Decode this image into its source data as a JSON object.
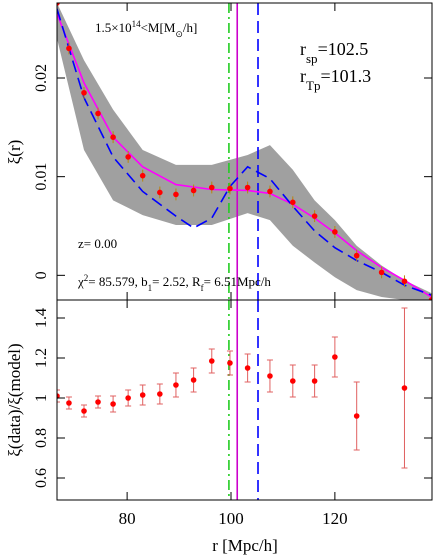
{
  "chart_data": {
    "type": "line",
    "xlabel": "r [Mpc/h]",
    "ylabel": "ξ(r)",
    "ylabel2": "ξ(data)/ξ(model)",
    "xlim": [
      66.5,
      138.7
    ],
    "xticks": [
      80,
      100,
      120
    ],
    "ylim": [
      -0.0025,
      0.0276
    ],
    "yticks": [
      0,
      0.01,
      0.02
    ],
    "ylim2": [
      0.49,
      1.49
    ],
    "yticks2": [
      0.6,
      0.8,
      1,
      1.2,
      1.4
    ],
    "band": {
      "color": "#a0a0a0",
      "x": [
        66.5,
        71.7,
        77.3,
        83.0,
        89.4,
        96.3,
        103.2,
        107.5,
        111.9,
        116.1,
        120.0,
        124.2,
        129.0,
        133.4,
        138.6
      ],
      "lower": [
        0.024,
        0.0127,
        0.0076,
        0.0061,
        0.0051,
        0.0051,
        0.0063,
        0.0056,
        0.003,
        0.0013,
        -0.0002,
        -0.0015,
        -0.0022,
        -0.0025,
        -0.0025
      ],
      "upper": [
        0.0276,
        0.0218,
        0.0168,
        0.0127,
        0.0112,
        0.0112,
        0.0122,
        0.0132,
        0.0107,
        0.0076,
        0.0056,
        0.003,
        0.001,
        -0.0005,
        -0.0018
      ]
    },
    "series": [
      {
        "color": "#ff00ff",
        "dash": "solid",
        "x": [
          66.5,
          71.7,
          77.3,
          83.0,
          89.4,
          96.3,
          103.2,
          107.5,
          111.9,
          116.1,
          120.0,
          124.2,
          129.0,
          133.4,
          138.6
        ],
        "values": [
          0.0265,
          0.0195,
          0.014,
          0.011,
          0.0092,
          0.0087,
          0.0086,
          0.0083,
          0.0072,
          0.0058,
          0.0043,
          0.0025,
          0.0008,
          -0.0005,
          -0.0022
        ]
      },
      {
        "color": "#0000ff",
        "dash": "dashed",
        "x": [
          66.5,
          71.7,
          77.3,
          83.0,
          89.4,
          92.8,
          96.3,
          99.8,
          103.2,
          107.5,
          111.9,
          116.1,
          120.0,
          124.2,
          129.0,
          133.4,
          138.6
        ],
        "values": [
          0.027,
          0.018,
          0.012,
          0.0085,
          0.006,
          0.0048,
          0.0058,
          0.009,
          0.011,
          0.0098,
          0.007,
          0.0045,
          0.0028,
          0.0015,
          0.0003,
          -0.001,
          -0.002
        ]
      }
    ],
    "points": {
      "color": "#ff0000",
      "errcolor": "#b8860b",
      "x": [
        66.5,
        68.8,
        71.7,
        74.4,
        77.3,
        80.2,
        83.0,
        86.3,
        89.4,
        92.8,
        96.3,
        99.8,
        103.2,
        107.5,
        111.9,
        116.1,
        120.0,
        124.2,
        129.0,
        133.4,
        138.6
      ],
      "values": [
        0.0276,
        0.023,
        0.0185,
        0.0164,
        0.014,
        0.012,
        0.0101,
        0.0084,
        0.0082,
        0.0086,
        0.0089,
        0.0088,
        0.0089,
        0.0085,
        0.0074,
        0.006,
        0.0044,
        0.002,
        0.0003,
        -0.0006,
        -0.0025
      ],
      "errors": [
        0.0006,
        0.0006,
        0.0006,
        0.0006,
        0.0006,
        0.0006,
        0.0006,
        0.0006,
        0.0006,
        0.0006,
        0.0006,
        0.0006,
        0.0006,
        0.0006,
        0.0006,
        0.0006,
        0.0006,
        0.0006,
        0.0006,
        0.0006,
        0.0006
      ]
    },
    "ratio": {
      "color": "#ff0000",
      "errcolor": "#e06060",
      "values": [
        1.01,
        0.975,
        0.935,
        0.98,
        0.97,
        1.0,
        1.015,
        1.02,
        1.065,
        1.09,
        1.185,
        1.175,
        1.15,
        1.11,
        1.085,
        1.085,
        1.205,
        0.91,
        null,
        1.05,
        null
      ],
      "errors": [
        0.03,
        0.03,
        0.03,
        0.03,
        0.04,
        0.04,
        0.05,
        0.05,
        0.06,
        0.06,
        0.06,
        0.06,
        0.07,
        0.08,
        0.08,
        0.08,
        0.1,
        0.17,
        null,
        0.4,
        null
      ]
    },
    "vlines": [
      {
        "x": 99.6,
        "color": "#22cc22",
        "dash": "dashdot"
      },
      {
        "x": 101.2,
        "color": "#cc00cc",
        "dash": "solid"
      },
      {
        "x": 105.2,
        "color": "#0000ff",
        "dash": "dashed"
      }
    ],
    "annotations": [
      {
        "parts": [
          {
            "text": "1.5×10"
          },
          {
            "text": "14",
            "shift": "super"
          },
          {
            "text": "<M[M"
          },
          {
            "text": "⊙",
            "shift": "sub"
          },
          {
            "text": "/h]"
          }
        ]
      },
      {
        "parts": [
          {
            "text": "r"
          },
          {
            "text": "sp",
            "shift": "sub"
          },
          {
            "text": "=102.5"
          }
        ]
      },
      {
        "parts": [
          {
            "text": "r"
          },
          {
            "text": "Tp",
            "shift": "sub"
          },
          {
            "text": "=101.3"
          }
        ]
      },
      {
        "parts": [
          {
            "text": "z= 0.00"
          }
        ]
      },
      {
        "parts": [
          {
            "text": "χ"
          },
          {
            "text": "2",
            "shift": "super"
          },
          {
            "text": "=  85.579, b"
          },
          {
            "text": "1",
            "shift": "sub"
          },
          {
            "text": "= 2.52, R"
          },
          {
            "text": "f",
            "shift": "sub"
          },
          {
            "text": "= 6.51Mpc/h"
          }
        ]
      }
    ]
  }
}
